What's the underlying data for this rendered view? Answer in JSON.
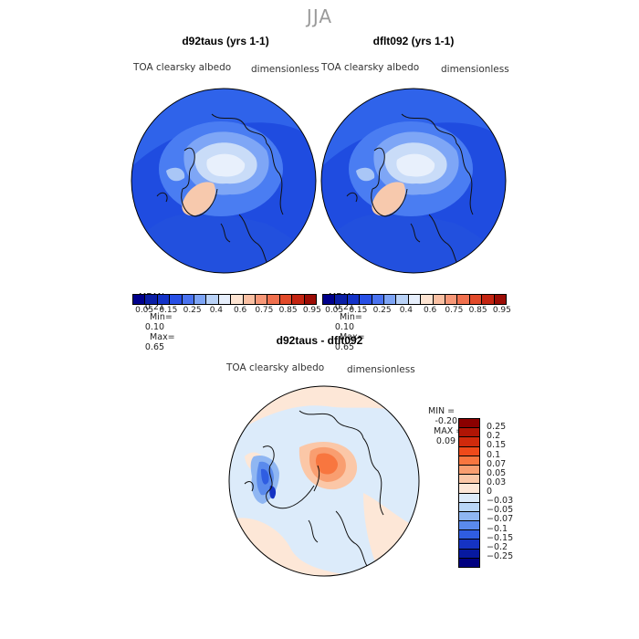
{
  "season": "JJA",
  "panels": [
    {
      "title": "d92taus (yrs 1-1)",
      "variable": "TOA clearsky albedo",
      "units": "dimensionless",
      "stats": {
        "mean_label": "MEAN=",
        "mean": "0.21",
        "min_label": "Min=",
        "min": "0.10",
        "max_label": "Max=",
        "max": "0.65"
      }
    },
    {
      "title": "dflt092 (yrs 1-1)",
      "variable": "TOA clearsky albedo",
      "units": "dimensionless",
      "stats": {
        "mean_label": "MEAN=",
        "mean": "0.21",
        "min_label": "Min=",
        "min": "0.10",
        "max_label": "Max=",
        "max": "0.65"
      }
    }
  ],
  "abs_colorbar": {
    "colors": [
      "#00008b",
      "#0b1fa6",
      "#1433c8",
      "#2850e6",
      "#4a73f0",
      "#7da4f5",
      "#b9d2f7",
      "#e6eefb",
      "#fde3d1",
      "#fac0a3",
      "#f79777",
      "#f0704e",
      "#e24a2a",
      "#c42512",
      "#9b0c05"
    ],
    "labels": [
      "0.05",
      "0.15",
      "0.25",
      "0.4",
      "0.6",
      "0.75",
      "0.85",
      "0.95"
    ]
  },
  "diff_panel": {
    "title": "d92taus - dflt092",
    "variable": "TOA clearsky albedo",
    "units": "dimensionless",
    "stats": {
      "min_label": "MIN =",
      "min": "-0.20",
      "max_label": "MAX =",
      "max": "0.09"
    }
  },
  "diff_colorbar": {
    "colors": [
      "#8b0000",
      "#b01505",
      "#d02a0c",
      "#ef4a1a",
      "#f8763f",
      "#f99e70",
      "#fbc7a7",
      "#fde7d7",
      "#dcebfa",
      "#b9d6f7",
      "#8fb6f2",
      "#5a8aec",
      "#2f5de2",
      "#1533c3",
      "#0719a0",
      "#000080"
    ],
    "labels": [
      "0.25",
      "0.2",
      "0.15",
      "0.1",
      "0.07",
      "0.05",
      "0.03",
      "0",
      "−0.03",
      "−0.05",
      "−0.07",
      "−0.1",
      "−0.15",
      "−0.2",
      "−0.25"
    ]
  }
}
